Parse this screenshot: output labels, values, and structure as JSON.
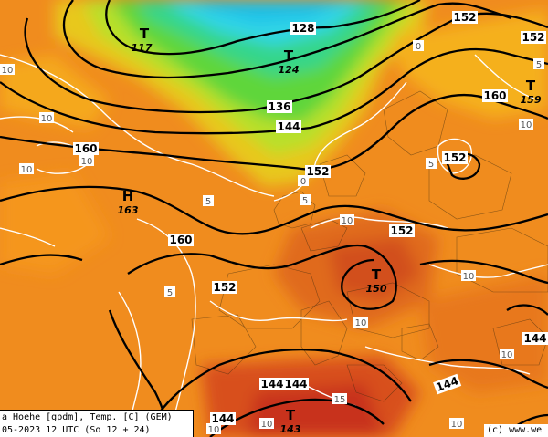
{
  "colors": {
    "sea_cold_cyan": "#33d6e6",
    "green_band": "#5ed63a",
    "yellow_band": "#d9e61f",
    "orange_base": "#f08c1e",
    "orange_dark": "#e06a1a",
    "red_warm": "#c8321e",
    "contour_black": "#000000",
    "isotherm_white": "#ffffff"
  },
  "caption": {
    "line1": "a Hoehe [gpdm], Temp. [C] (GEM)",
    "line2": "05-2023 12 UTC (So 12 + 24)"
  },
  "copyright": "(c) www.we",
  "pressure_systems": [
    {
      "type": "T",
      "value": "117"
    },
    {
      "type": "T",
      "value": "124"
    },
    {
      "type": "H",
      "value": "163"
    },
    {
      "type": "T",
      "value": "150"
    },
    {
      "type": "T",
      "value": "143"
    },
    {
      "type": "T",
      "value": "159"
    }
  ],
  "contour_labels": [
    "128",
    "136",
    "144",
    "152",
    "160",
    "152",
    "152",
    "152",
    "160",
    "152",
    "144",
    "144",
    "144",
    "144",
    "144",
    "152",
    "160"
  ],
  "isotherm_labels": [
    "10",
    "10",
    "10",
    "10",
    "5",
    "5",
    "5",
    "5",
    "0",
    "0",
    "10",
    "10",
    "10",
    "10",
    "10",
    "10",
    "10",
    "15",
    "10",
    "5"
  ]
}
